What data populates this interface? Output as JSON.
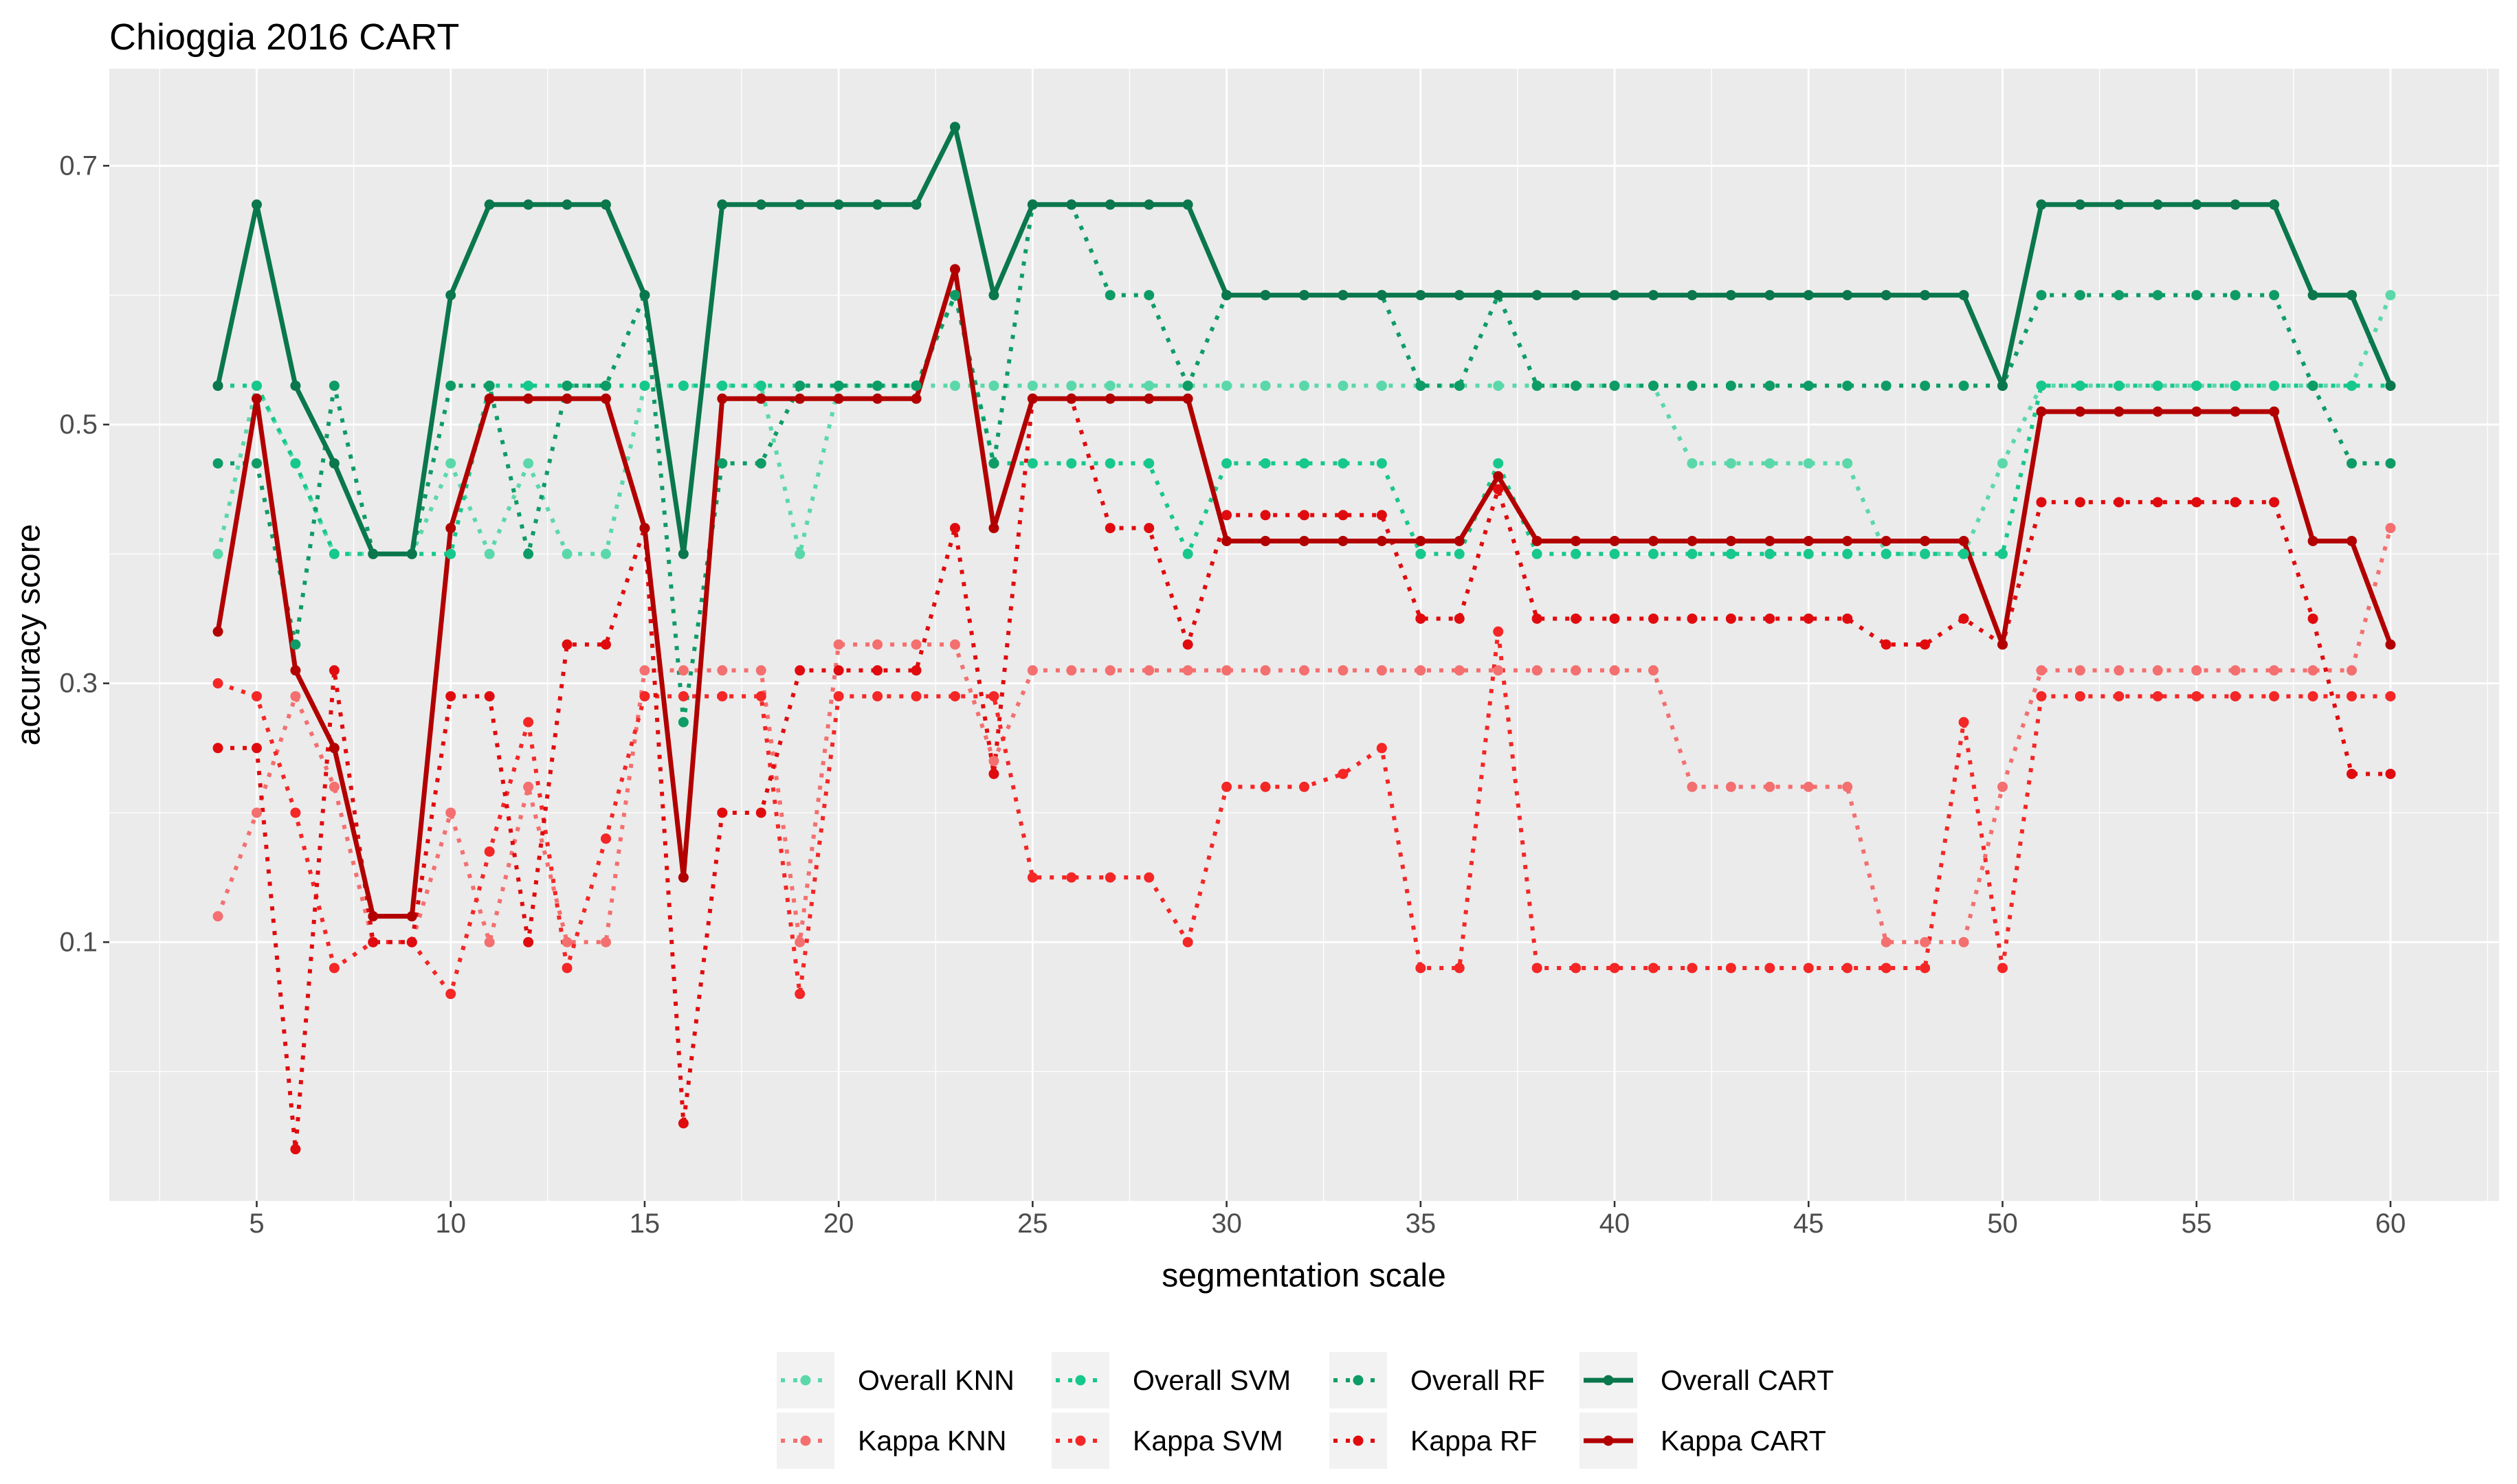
{
  "chart_data": {
    "type": "line",
    "title": "Chioggia 2016 CART",
    "xlabel": "segmentation scale",
    "ylabel": "accuracy score",
    "xlim": [
      1.2,
      62.8
    ],
    "ylim": [
      -0.1,
      0.775
    ],
    "x_ticks": [
      5,
      10,
      15,
      20,
      25,
      30,
      35,
      40,
      45,
      50,
      55,
      60
    ],
    "y_ticks": [
      0.1,
      0.3,
      0.5,
      0.7
    ],
    "y_tick_labels": [
      "0.1",
      "0.3",
      "0.5",
      "0.7"
    ],
    "grid": true,
    "legend_position": "bottom",
    "x": [
      4,
      5,
      6,
      7,
      8,
      9,
      10,
      11,
      12,
      13,
      14,
      15,
      16,
      17,
      18,
      19,
      20,
      21,
      22,
      23,
      24,
      25,
      26,
      27,
      28,
      29,
      30,
      31,
      32,
      33,
      34,
      35,
      36,
      37,
      38,
      39,
      40,
      41,
      42,
      43,
      44,
      45,
      46,
      47,
      48,
      49,
      50,
      51,
      52,
      53,
      54,
      55,
      56,
      57,
      58,
      59,
      60
    ],
    "series": [
      {
        "name": "Overall KNN",
        "color": "#5AD8AA",
        "linetype": "dotted",
        "values": [
          0.4,
          0.53,
          0.47,
          0.4,
          0.4,
          0.4,
          0.47,
          0.4,
          0.47,
          0.4,
          0.4,
          0.53,
          0.53,
          0.53,
          0.53,
          0.4,
          0.53,
          0.53,
          0.53,
          0.53,
          0.53,
          0.53,
          0.53,
          0.53,
          0.53,
          0.53,
          0.53,
          0.53,
          0.53,
          0.53,
          0.53,
          0.53,
          0.53,
          0.53,
          0.53,
          0.53,
          0.53,
          0.53,
          0.47,
          0.47,
          0.47,
          0.47,
          0.47,
          0.4,
          0.4,
          0.4,
          0.47,
          0.53,
          0.53,
          0.53,
          0.53,
          0.53,
          0.53,
          0.53,
          0.53,
          0.53,
          0.6
        ]
      },
      {
        "name": "Kappa KNN",
        "color": "#F46F6F",
        "linetype": "dotted",
        "values": [
          0.12,
          0.2,
          0.29,
          0.22,
          0.1,
          0.1,
          0.2,
          0.1,
          0.22,
          0.1,
          0.1,
          0.31,
          0.31,
          0.31,
          0.31,
          0.1,
          0.33,
          0.33,
          0.33,
          0.33,
          0.24,
          0.31,
          0.31,
          0.31,
          0.31,
          0.31,
          0.31,
          0.31,
          0.31,
          0.31,
          0.31,
          0.31,
          0.31,
          0.31,
          0.31,
          0.31,
          0.31,
          0.31,
          0.22,
          0.22,
          0.22,
          0.22,
          0.22,
          0.1,
          0.1,
          0.1,
          0.22,
          0.31,
          0.31,
          0.31,
          0.31,
          0.31,
          0.31,
          0.31,
          0.31,
          0.31,
          0.42
        ]
      },
      {
        "name": "Overall SVM",
        "color": "#16C88B",
        "linetype": "dotted",
        "values": [
          0.53,
          0.53,
          0.47,
          0.4,
          0.4,
          0.4,
          0.4,
          0.53,
          0.53,
          0.53,
          0.53,
          0.53,
          0.53,
          0.53,
          0.53,
          0.53,
          0.53,
          0.53,
          0.53,
          0.6,
          0.47,
          0.47,
          0.47,
          0.47,
          0.47,
          0.4,
          0.47,
          0.47,
          0.47,
          0.47,
          0.47,
          0.4,
          0.4,
          0.47,
          0.4,
          0.4,
          0.4,
          0.4,
          0.4,
          0.4,
          0.4,
          0.4,
          0.4,
          0.4,
          0.4,
          0.4,
          0.4,
          0.53,
          0.53,
          0.53,
          0.53,
          0.53,
          0.53,
          0.53,
          0.53,
          0.53,
          0.53
        ]
      },
      {
        "name": "Kappa SVM",
        "color": "#F42626",
        "linetype": "dotted",
        "values": [
          0.3,
          0.29,
          0.2,
          0.08,
          0.1,
          0.1,
          0.06,
          0.17,
          0.27,
          0.08,
          0.18,
          0.29,
          0.29,
          0.29,
          0.29,
          0.06,
          0.29,
          0.29,
          0.29,
          0.29,
          0.29,
          0.15,
          0.15,
          0.15,
          0.15,
          0.1,
          0.22,
          0.22,
          0.22,
          0.23,
          0.25,
          0.08,
          0.08,
          0.34,
          0.08,
          0.08,
          0.08,
          0.08,
          0.08,
          0.08,
          0.08,
          0.08,
          0.08,
          0.08,
          0.08,
          0.27,
          0.08,
          0.29,
          0.29,
          0.29,
          0.29,
          0.29,
          0.29,
          0.29,
          0.29,
          0.29,
          0.29
        ]
      },
      {
        "name": "Overall RF",
        "color": "#0E9C66",
        "linetype": "dotted",
        "values": [
          0.47,
          0.47,
          0.33,
          0.53,
          0.4,
          0.4,
          0.53,
          0.53,
          0.4,
          0.53,
          0.53,
          0.6,
          0.27,
          0.47,
          0.47,
          0.53,
          0.53,
          0.53,
          0.53,
          0.6,
          0.47,
          0.67,
          0.67,
          0.6,
          0.6,
          0.53,
          0.6,
          0.6,
          0.6,
          0.6,
          0.6,
          0.53,
          0.53,
          0.6,
          0.53,
          0.53,
          0.53,
          0.53,
          0.53,
          0.53,
          0.53,
          0.53,
          0.53,
          0.53,
          0.53,
          0.53,
          0.53,
          0.6,
          0.6,
          0.6,
          0.6,
          0.6,
          0.6,
          0.6,
          0.53,
          0.47,
          0.47
        ]
      },
      {
        "name": "Kappa RF",
        "color": "#E00B0E",
        "linetype": "dotted",
        "values": [
          0.25,
          0.25,
          -0.06,
          0.31,
          0.1,
          0.1,
          0.29,
          0.29,
          0.1,
          0.33,
          0.33,
          0.42,
          -0.04,
          0.2,
          0.2,
          0.31,
          0.31,
          0.31,
          0.31,
          0.42,
          0.23,
          0.52,
          0.52,
          0.42,
          0.42,
          0.33,
          0.43,
          0.43,
          0.43,
          0.43,
          0.43,
          0.35,
          0.35,
          0.45,
          0.35,
          0.35,
          0.35,
          0.35,
          0.35,
          0.35,
          0.35,
          0.35,
          0.35,
          0.33,
          0.33,
          0.35,
          0.33,
          0.44,
          0.44,
          0.44,
          0.44,
          0.44,
          0.44,
          0.44,
          0.35,
          0.23,
          0.23
        ]
      },
      {
        "name": "Overall CART",
        "color": "#0A774C",
        "linetype": "solid",
        "values": [
          0.53,
          0.67,
          0.53,
          0.47,
          0.4,
          0.4,
          0.6,
          0.67,
          0.67,
          0.67,
          0.67,
          0.6,
          0.4,
          0.67,
          0.67,
          0.67,
          0.67,
          0.67,
          0.67,
          0.73,
          0.6,
          0.67,
          0.67,
          0.67,
          0.67,
          0.67,
          0.6,
          0.6,
          0.6,
          0.6,
          0.6,
          0.6,
          0.6,
          0.6,
          0.6,
          0.6,
          0.6,
          0.6,
          0.6,
          0.6,
          0.6,
          0.6,
          0.6,
          0.6,
          0.6,
          0.6,
          0.53,
          0.67,
          0.67,
          0.67,
          0.67,
          0.67,
          0.67,
          0.67,
          0.6,
          0.6,
          0.53
        ]
      },
      {
        "name": "Kappa CART",
        "color": "#B20000",
        "linetype": "solid",
        "values": [
          0.34,
          0.52,
          0.31,
          0.25,
          0.12,
          0.12,
          0.42,
          0.52,
          0.52,
          0.52,
          0.52,
          0.42,
          0.15,
          0.52,
          0.52,
          0.52,
          0.52,
          0.52,
          0.52,
          0.62,
          0.42,
          0.52,
          0.52,
          0.52,
          0.52,
          0.52,
          0.41,
          0.41,
          0.41,
          0.41,
          0.41,
          0.41,
          0.41,
          0.46,
          0.41,
          0.41,
          0.41,
          0.41,
          0.41,
          0.41,
          0.41,
          0.41,
          0.41,
          0.41,
          0.41,
          0.41,
          0.33,
          0.51,
          0.51,
          0.51,
          0.51,
          0.51,
          0.51,
          0.51,
          0.41,
          0.41,
          0.33
        ]
      }
    ]
  }
}
